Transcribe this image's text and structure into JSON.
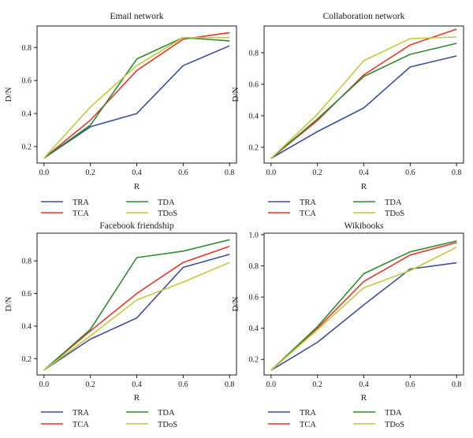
{
  "legend_entries": [
    "TRA",
    "TDA",
    "TCA",
    "TDoS"
  ],
  "colors": {
    "TRA": "#3b4fa0",
    "TCA": "#e8362b",
    "TDA": "#2f8a2f",
    "TDoS": "#c2c93a"
  },
  "chart_data": [
    {
      "type": "line",
      "title": "Email network",
      "xlabel": "R",
      "ylabel": "D/N",
      "x": [
        0.0,
        0.2,
        0.4,
        0.6,
        0.8
      ],
      "x_ticks": [
        "0.0",
        "0.2",
        "0.4",
        "0.6",
        "0.8"
      ],
      "y_ticks": [
        "0.2",
        "0.4",
        "0.6",
        "0.8"
      ],
      "xlim": [
        -0.03,
        0.83
      ],
      "ylim": [
        0.1,
        0.93
      ],
      "grid": false,
      "legend_position": "below",
      "series": [
        {
          "name": "TRA",
          "values": [
            0.13,
            0.32,
            0.4,
            0.69,
            0.81
          ]
        },
        {
          "name": "TCA",
          "values": [
            0.13,
            0.36,
            0.66,
            0.85,
            0.89
          ]
        },
        {
          "name": "TDA",
          "values": [
            0.13,
            0.33,
            0.73,
            0.86,
            0.84
          ]
        },
        {
          "name": "TDoS",
          "values": [
            0.13,
            0.44,
            0.69,
            0.86,
            0.86
          ]
        }
      ]
    },
    {
      "type": "line",
      "title": "Collaboration network",
      "xlabel": "R",
      "ylabel": "D/N",
      "x": [
        0.0,
        0.2,
        0.4,
        0.6,
        0.8
      ],
      "x_ticks": [
        "0.0",
        "0.2",
        "0.4",
        "0.6",
        "0.8"
      ],
      "y_ticks": [
        "0.2",
        "0.4",
        "0.6",
        "0.8"
      ],
      "xlim": [
        -0.03,
        0.83
      ],
      "ylim": [
        0.1,
        0.97
      ],
      "grid": false,
      "legend_position": "below",
      "series": [
        {
          "name": "TRA",
          "values": [
            0.13,
            0.3,
            0.45,
            0.71,
            0.78
          ]
        },
        {
          "name": "TCA",
          "values": [
            0.13,
            0.37,
            0.66,
            0.85,
            0.95
          ]
        },
        {
          "name": "TDA",
          "values": [
            0.13,
            0.38,
            0.65,
            0.79,
            0.86
          ]
        },
        {
          "name": "TDoS",
          "values": [
            0.13,
            0.41,
            0.75,
            0.89,
            0.9
          ]
        }
      ]
    },
    {
      "type": "line",
      "title": "Facebook friendship",
      "xlabel": "R",
      "ylabel": "D/N",
      "x": [
        0.0,
        0.2,
        0.4,
        0.6,
        0.8
      ],
      "x_ticks": [
        "0.0",
        "0.2",
        "0.4",
        "0.6",
        "0.8"
      ],
      "y_ticks": [
        "0.2",
        "0.4",
        "0.6",
        "0.8"
      ],
      "xlim": [
        -0.03,
        0.83
      ],
      "ylim": [
        0.1,
        0.97
      ],
      "grid": false,
      "legend_position": "below",
      "series": [
        {
          "name": "TRA",
          "values": [
            0.13,
            0.32,
            0.45,
            0.76,
            0.84
          ]
        },
        {
          "name": "TCA",
          "values": [
            0.13,
            0.37,
            0.6,
            0.79,
            0.89
          ]
        },
        {
          "name": "TDA",
          "values": [
            0.13,
            0.38,
            0.82,
            0.86,
            0.93
          ]
        },
        {
          "name": "TDoS",
          "values": [
            0.13,
            0.34,
            0.56,
            0.67,
            0.79
          ]
        }
      ]
    },
    {
      "type": "line",
      "title": "Wikibooks",
      "xlabel": "R",
      "ylabel": "D/N",
      "x": [
        0.0,
        0.2,
        0.4,
        0.6,
        0.8
      ],
      "x_ticks": [
        "0.0",
        "0.2",
        "0.4",
        "0.6",
        "0.8"
      ],
      "y_ticks": [
        "0.2",
        "0.4",
        "0.6",
        "0.8",
        "1.0"
      ],
      "xlim": [
        -0.03,
        0.83
      ],
      "ylim": [
        0.1,
        1.01
      ],
      "grid": false,
      "legend_position": "below",
      "series": [
        {
          "name": "TRA",
          "values": [
            0.13,
            0.31,
            0.55,
            0.78,
            0.82
          ]
        },
        {
          "name": "TCA",
          "values": [
            0.13,
            0.4,
            0.7,
            0.87,
            0.95
          ]
        },
        {
          "name": "TDA",
          "values": [
            0.13,
            0.41,
            0.75,
            0.89,
            0.96
          ]
        },
        {
          "name": "TDoS",
          "values": [
            0.13,
            0.39,
            0.66,
            0.77,
            0.92
          ]
        }
      ]
    }
  ]
}
